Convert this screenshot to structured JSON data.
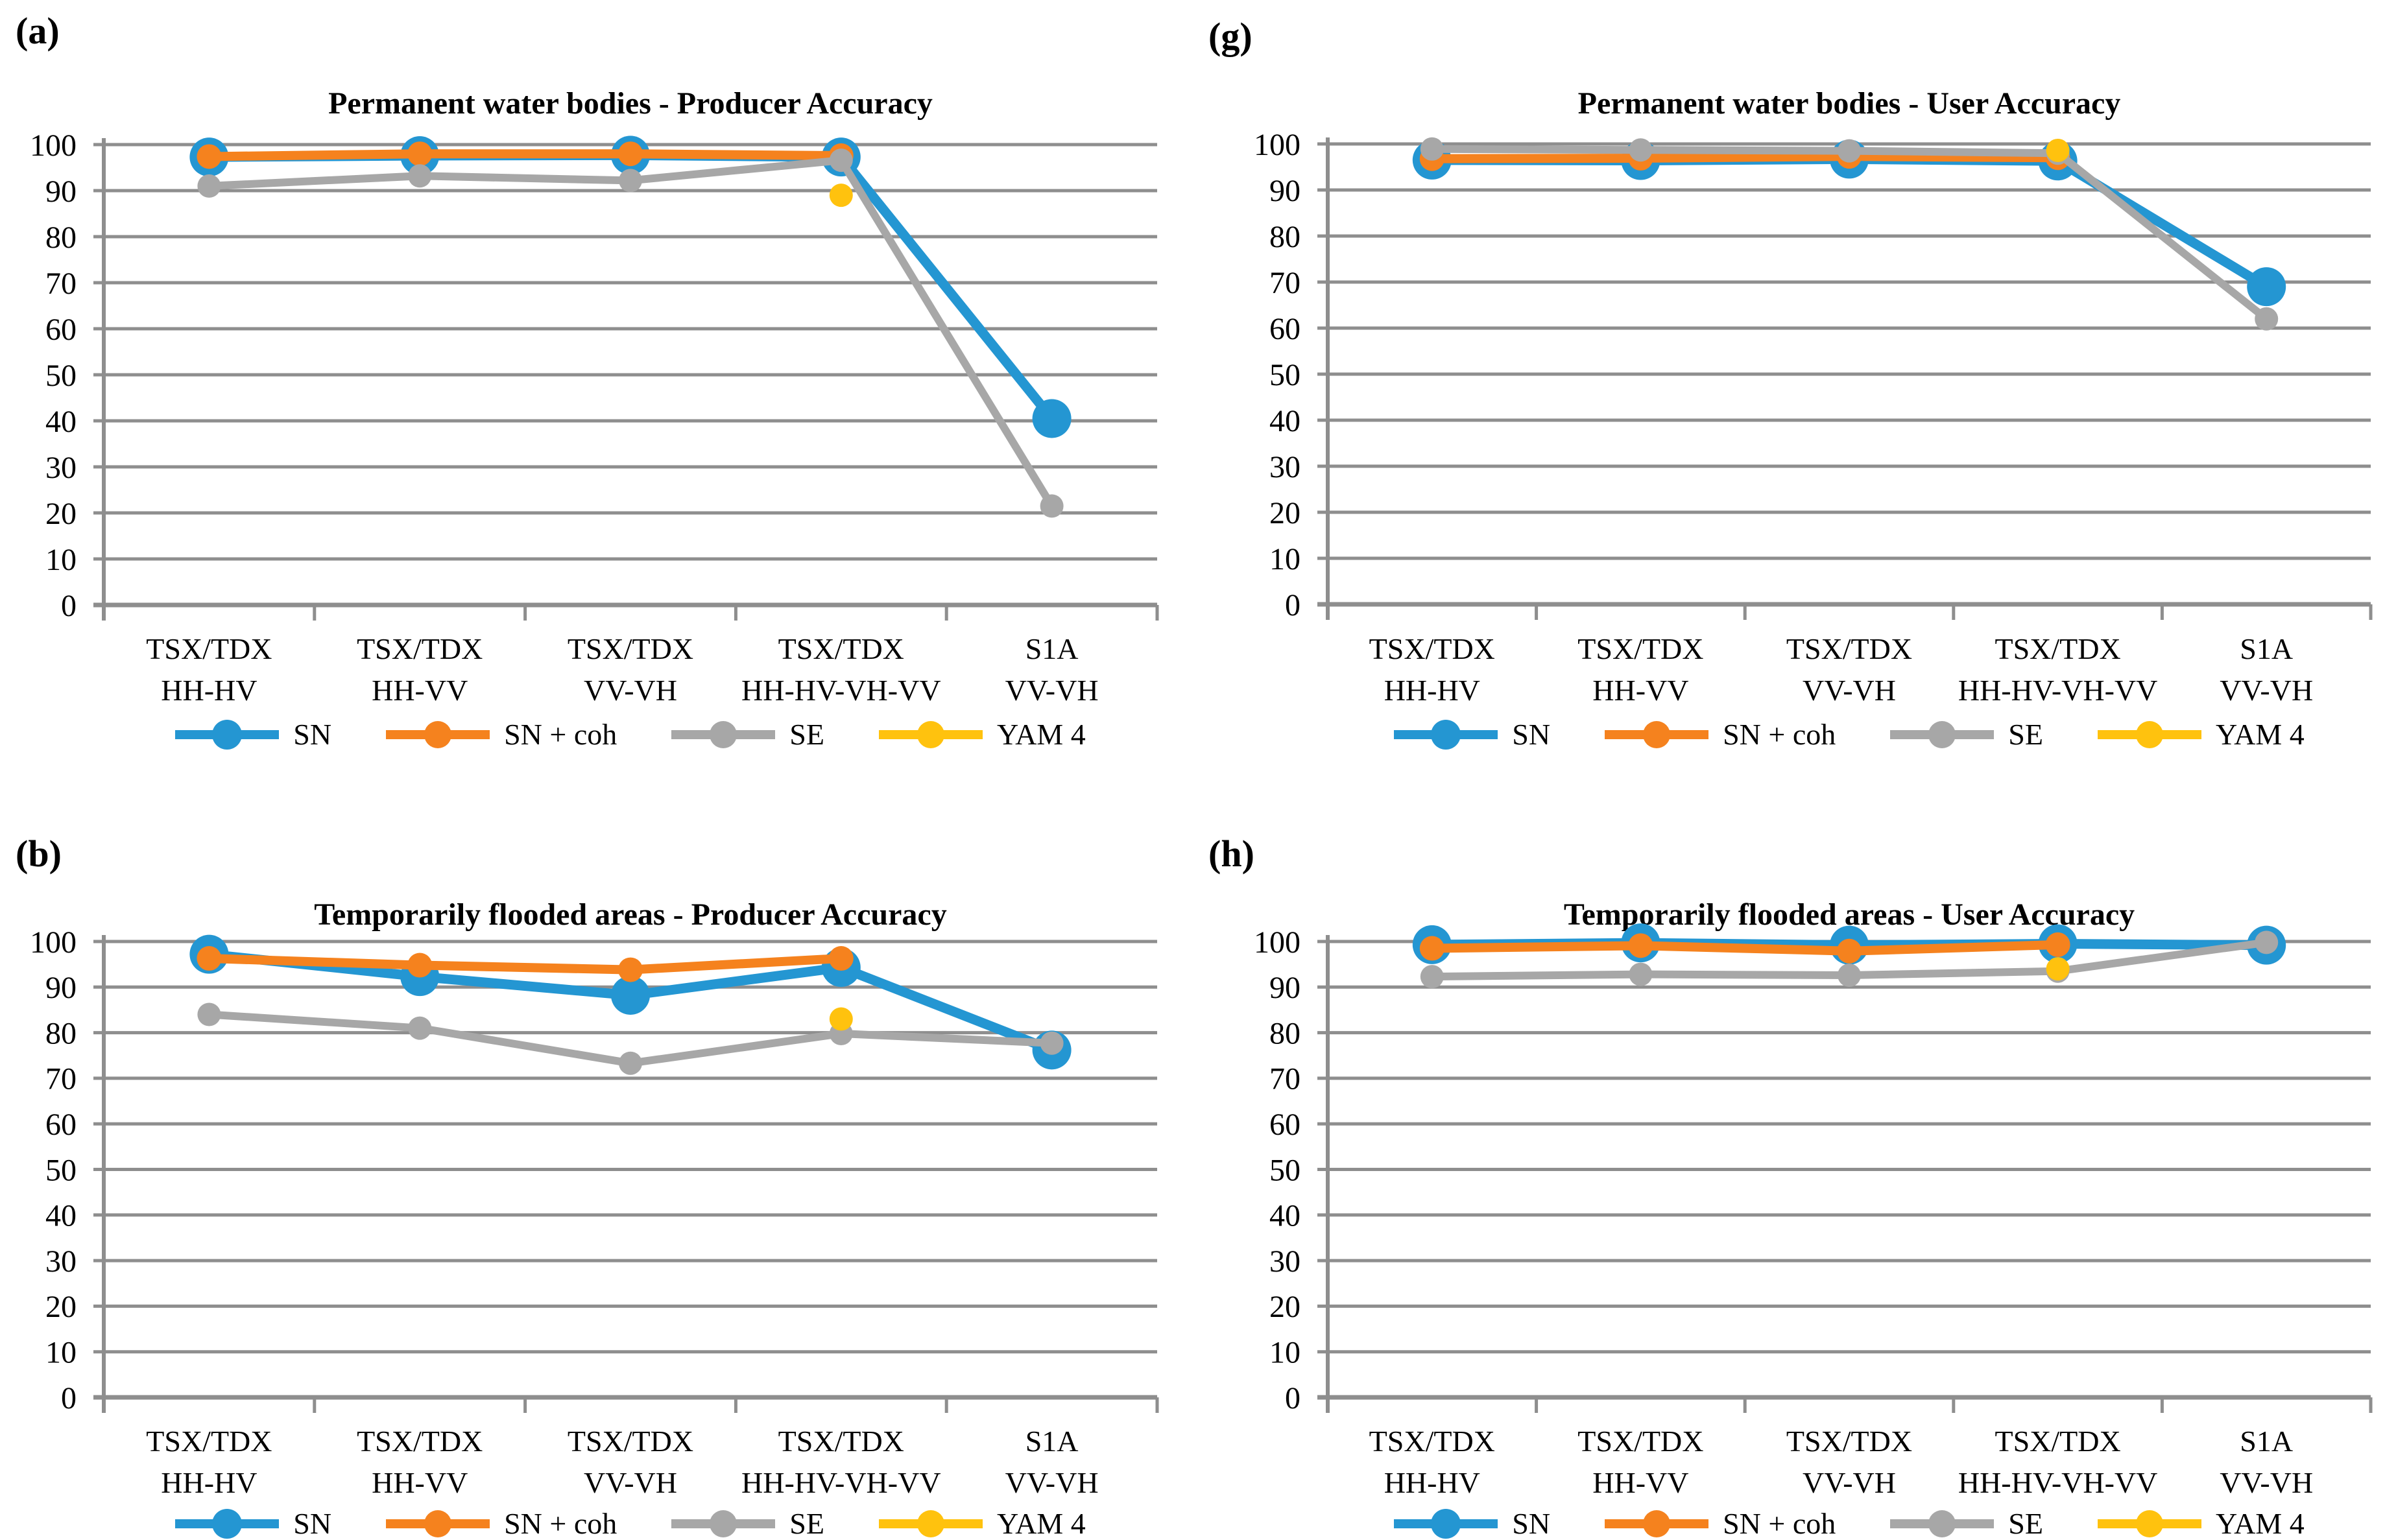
{
  "figure": {
    "description": "Four line charts comparing classification accuracies of SAR sensor/polarization combinations",
    "colors": {
      "SN": "#2496D2",
      "SN + coh": "#F5821E",
      "SE": "#A7A7A7",
      "YAM 4": "#FFC20E",
      "grid": "#8E8E8E",
      "text": "#000000",
      "background": "#FFFFFF"
    }
  },
  "chart_data": [
    {
      "type": "line",
      "panel_label": "(a)",
      "title": "Permanent water bodies - Producer Accuracy",
      "categories": [
        {
          "line1": "TSX/TDX",
          "line2": "HH-HV"
        },
        {
          "line1": "TSX/TDX",
          "line2": "HH-VV"
        },
        {
          "line1": "TSX/TDX",
          "line2": "VV-VH"
        },
        {
          "line1": "TSX/TDX",
          "line2": "HH-HV-VH-VV"
        },
        {
          "line1": "S1A",
          "line2": "VV-VH"
        }
      ],
      "ylim": [
        0,
        100
      ],
      "ytick_step": 10,
      "grid": true,
      "legend_position": "bottom",
      "series": [
        {
          "name": "SN",
          "color": "#2496D2",
          "values": [
            97.3,
            97.6,
            97.7,
            97.3,
            40.5
          ]
        },
        {
          "name": "SN + coh",
          "color": "#F5821E",
          "values": [
            97.4,
            98.0,
            98.0,
            97.6,
            null
          ]
        },
        {
          "name": "SE",
          "color": "#A7A7A7",
          "values": [
            91.0,
            93.2,
            92.2,
            96.6,
            21.5
          ]
        },
        {
          "name": "YAM 4",
          "color": "#FFC20E",
          "values": [
            null,
            null,
            null,
            89.0,
            null
          ]
        }
      ]
    },
    {
      "type": "line",
      "panel_label": "(g)",
      "title": "Permanent water bodies - User Accuracy",
      "categories": [
        {
          "line1": "TSX/TDX",
          "line2": "HH-HV"
        },
        {
          "line1": "TSX/TDX",
          "line2": "HH-VV"
        },
        {
          "line1": "TSX/TDX",
          "line2": "VV-VH"
        },
        {
          "line1": "TSX/TDX",
          "line2": "HH-HV-VH-VV"
        },
        {
          "line1": "S1A",
          "line2": "VV-VH"
        }
      ],
      "ylim": [
        0,
        100
      ],
      "ytick_step": 10,
      "grid": true,
      "legend_position": "bottom",
      "series": [
        {
          "name": "SN",
          "color": "#2496D2",
          "values": [
            96.5,
            96.4,
            96.7,
            96.3,
            69.0
          ]
        },
        {
          "name": "SN + coh",
          "color": "#F5821E",
          "values": [
            96.8,
            96.9,
            97.3,
            97.0,
            null
          ]
        },
        {
          "name": "SE",
          "color": "#A7A7A7",
          "values": [
            98.9,
            98.7,
            98.5,
            98.0,
            62.0
          ]
        },
        {
          "name": "YAM 4",
          "color": "#FFC20E",
          "values": [
            null,
            null,
            null,
            98.6,
            null
          ]
        }
      ]
    },
    {
      "type": "line",
      "panel_label": "(b)",
      "title": "Temporarily flooded areas - Producer Accuracy",
      "categories": [
        {
          "line1": "TSX/TDX",
          "line2": "HH-HV"
        },
        {
          "line1": "TSX/TDX",
          "line2": "HH-VV"
        },
        {
          "line1": "TSX/TDX",
          "line2": "VV-VH"
        },
        {
          "line1": "TSX/TDX",
          "line2": "HH-HV-VH-VV"
        },
        {
          "line1": "S1A",
          "line2": "VV-VH"
        }
      ],
      "ylim": [
        0,
        100
      ],
      "ytick_step": 10,
      "grid": true,
      "legend_position": "bottom",
      "series": [
        {
          "name": "SN",
          "color": "#2496D2",
          "values": [
            97.2,
            92.3,
            88.2,
            94.3,
            76.2
          ]
        },
        {
          "name": "SN + coh",
          "color": "#F5821E",
          "values": [
            96.3,
            94.8,
            93.8,
            96.3,
            null
          ]
        },
        {
          "name": "SE",
          "color": "#A7A7A7",
          "values": [
            84.0,
            81.0,
            73.3,
            79.8,
            77.7
          ]
        },
        {
          "name": "YAM 4",
          "color": "#FFC20E",
          "values": [
            null,
            null,
            null,
            83.0,
            null
          ]
        }
      ]
    },
    {
      "type": "line",
      "panel_label": "(h)",
      "title": "Temporarily flooded areas - User Accuracy",
      "categories": [
        {
          "line1": "TSX/TDX",
          "line2": "HH-HV"
        },
        {
          "line1": "TSX/TDX",
          "line2": "HH-VV"
        },
        {
          "line1": "TSX/TDX",
          "line2": "VV-VH"
        },
        {
          "line1": "TSX/TDX",
          "line2": "HH-HV-VH-VV"
        },
        {
          "line1": "S1A",
          "line2": "VV-VH"
        }
      ],
      "ylim": [
        0,
        100
      ],
      "ytick_step": 10,
      "grid": true,
      "legend_position": "bottom",
      "series": [
        {
          "name": "SN",
          "color": "#2496D2",
          "values": [
            99.3,
            99.7,
            99.2,
            99.5,
            99.2
          ]
        },
        {
          "name": "SN + coh",
          "color": "#F5821E",
          "values": [
            98.5,
            99.1,
            97.9,
            99.3,
            null
          ]
        },
        {
          "name": "SE",
          "color": "#A7A7A7",
          "values": [
            92.3,
            92.8,
            92.6,
            93.5,
            99.8
          ]
        },
        {
          "name": "YAM 4",
          "color": "#FFC20E",
          "values": [
            null,
            null,
            null,
            94.0,
            null
          ]
        }
      ]
    }
  ]
}
